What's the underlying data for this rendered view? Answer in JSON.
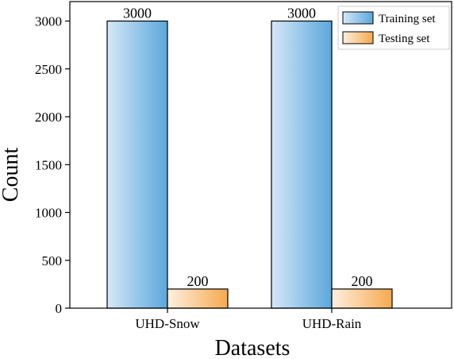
{
  "chart_data": {
    "type": "bar",
    "categories": [
      "UHD-Snow",
      "UHD-Rain"
    ],
    "series": [
      {
        "name": "Training set",
        "values": [
          3000,
          3000
        ],
        "color": "#5aa7dc"
      },
      {
        "name": "Testing set",
        "values": [
          200,
          200
        ],
        "color": "#f5a94e"
      }
    ],
    "data_labels": [
      "3000",
      "200",
      "3000",
      "200"
    ],
    "xlabel": "Datasets",
    "ylabel": "Count",
    "ylim": [
      0,
      3200
    ],
    "yticks": [
      0,
      500,
      1000,
      1500,
      2000,
      2500,
      3000
    ],
    "legend_position": "top-right",
    "grid": false
  }
}
